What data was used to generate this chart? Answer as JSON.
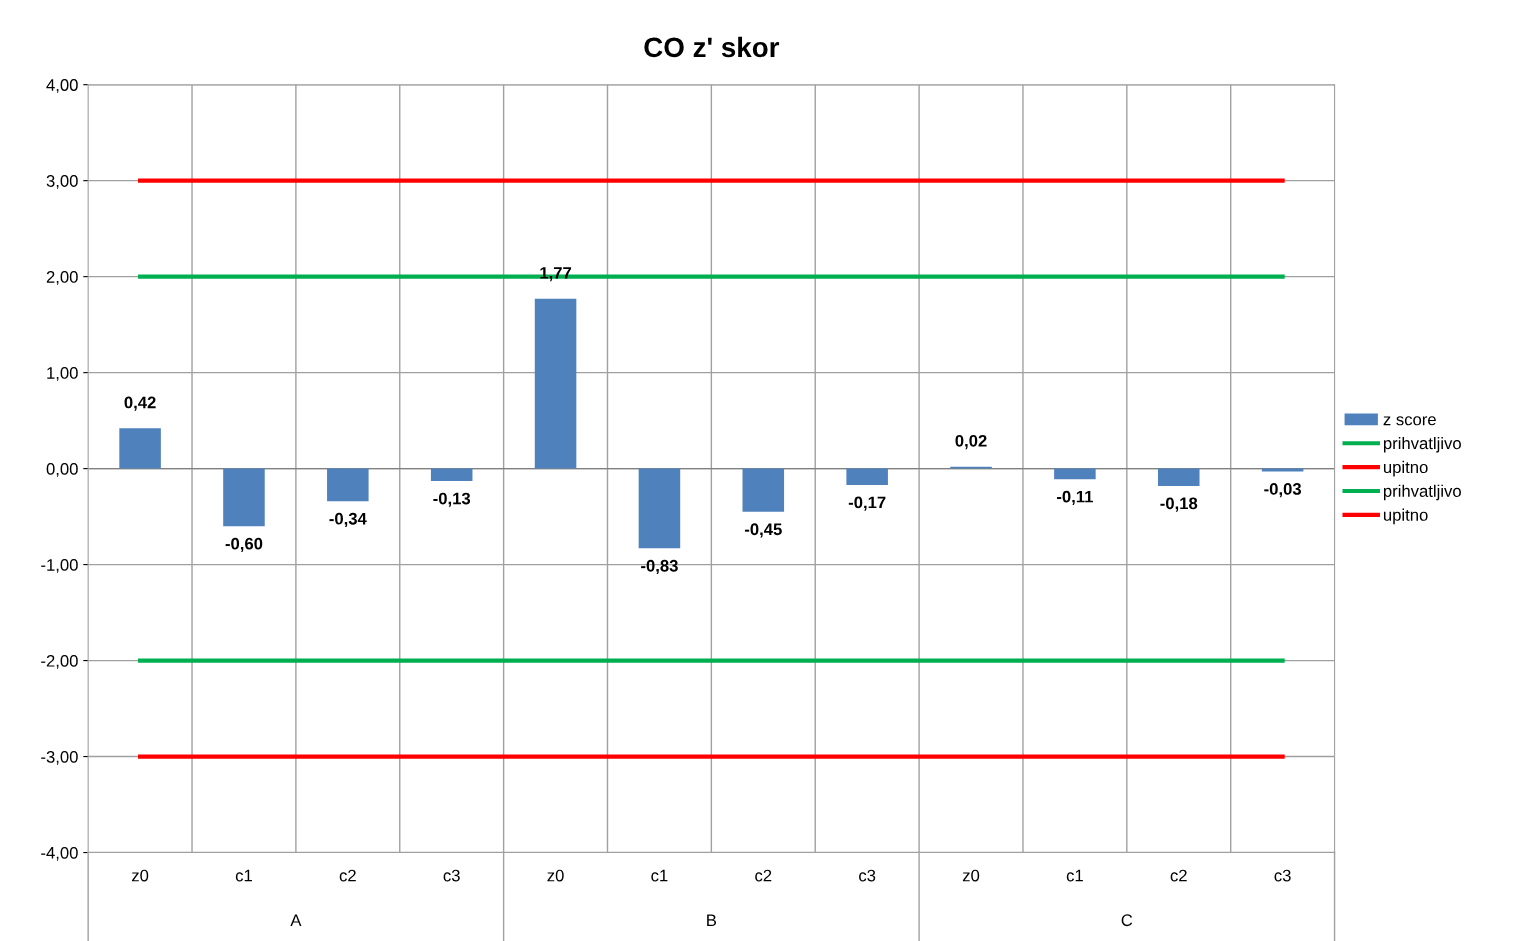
{
  "chart_data": {
    "type": "bar",
    "title": "CO z' skor",
    "categories": [
      "z0",
      "c1",
      "c2",
      "c3",
      "z0",
      "c1",
      "c2",
      "c3",
      "z0",
      "c1",
      "c2",
      "c3"
    ],
    "series": [
      {
        "name": "z score",
        "color": "#4f81bd",
        "values": [
          0.42,
          -0.6,
          -0.34,
          -0.13,
          1.77,
          -0.83,
          -0.45,
          -0.17,
          0.02,
          -0.11,
          -0.18,
          -0.03
        ],
        "value_labels": [
          "0,42",
          "-0,60",
          "-0,34",
          "-0,13",
          "1,77",
          "-0,83",
          "-0,45",
          "-0,17",
          "0,02",
          "-0,11",
          "-0,18",
          "-0,03"
        ]
      },
      {
        "name": "prihvatljivo",
        "type": "line",
        "color": "#00b050",
        "values": [
          2,
          2,
          2,
          2,
          2,
          2,
          2,
          2,
          2,
          2,
          2,
          2
        ]
      },
      {
        "name": "upitno",
        "type": "line",
        "color": "#ff0000",
        "values": [
          3,
          3,
          3,
          3,
          3,
          3,
          3,
          3,
          3,
          3,
          3,
          3
        ]
      },
      {
        "name": "prihvatljivo",
        "type": "line",
        "color": "#00b050",
        "values": [
          -2,
          -2,
          -2,
          -2,
          -2,
          -2,
          -2,
          -2,
          -2,
          -2,
          -2,
          -2
        ]
      },
      {
        "name": "upitno",
        "type": "line",
        "color": "#ff0000",
        "values": [
          -3,
          -3,
          -3,
          -3,
          -3,
          -3,
          -3,
          -3,
          -3,
          -3,
          -3,
          -3
        ]
      }
    ],
    "ylim": [
      -4,
      4
    ],
    "yticks": [
      {
        "value": -4,
        "label": "-4,00"
      },
      {
        "value": -3,
        "label": "-3,00"
      },
      {
        "value": -2,
        "label": "-2,00"
      },
      {
        "value": -1,
        "label": "-1,00"
      },
      {
        "value": 0,
        "label": "0,00"
      },
      {
        "value": 1,
        "label": "1,00"
      },
      {
        "value": 2,
        "label": "2,00"
      },
      {
        "value": 3,
        "label": "3,00"
      },
      {
        "value": 4,
        "label": "4,00"
      }
    ],
    "annotations": [
      "A",
      "B",
      "C"
    ],
    "grid": true,
    "legend": "right",
    "marker": "none",
    "line_style": "solid"
  }
}
